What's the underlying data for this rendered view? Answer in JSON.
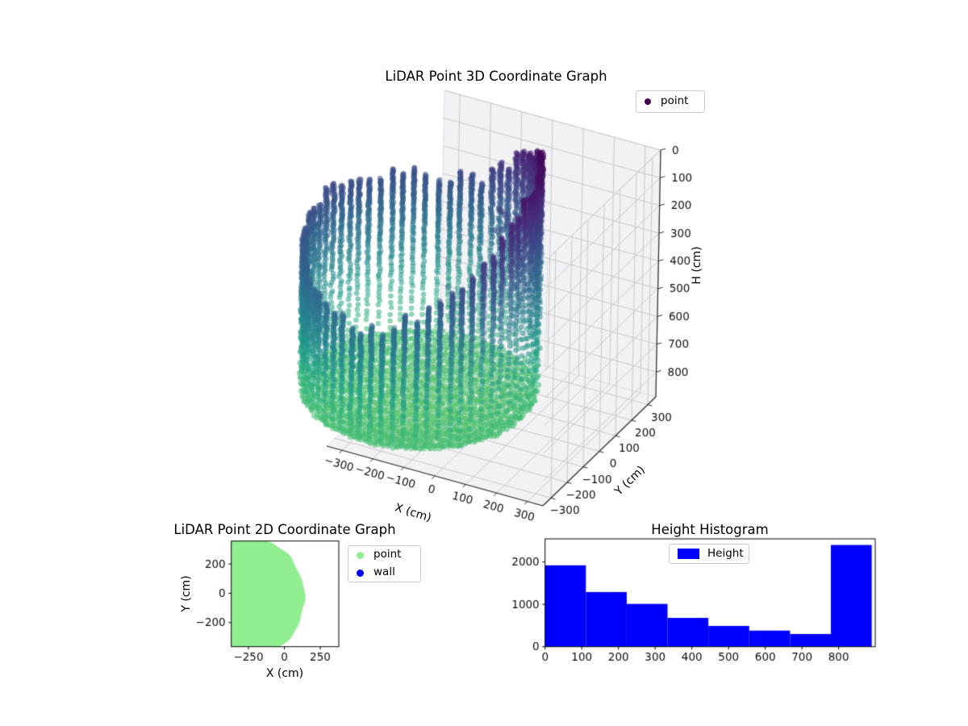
{
  "figure": {
    "background": "#ffffff"
  },
  "chart_data": [
    {
      "type": "scatter3d",
      "title": "LiDAR Point 3D Coordinate Graph",
      "xlabel": "X (cm)",
      "ylabel": "Y (cm)",
      "zlabel": "H (cm)",
      "xticks": [
        -300,
        -200,
        -100,
        0,
        100,
        200,
        300
      ],
      "yticks": [
        -300,
        -200,
        -100,
        0,
        100,
        200,
        300
      ],
      "zticks": [
        0,
        100,
        200,
        300,
        400,
        500,
        600,
        700,
        800
      ],
      "xlim": [
        -350,
        350
      ],
      "ylim": [
        -350,
        350
      ],
      "zlim": [
        0,
        890
      ],
      "z_inverted": true,
      "legend": [
        {
          "label": "point",
          "color": "#440154"
        }
      ],
      "colormap": "viridis (color encodes H: dark purple at H=0 top, green at H=890 bottom)",
      "cloud": {
        "shape": "cylindrical wall of vertical scan columns + bowl-shaped floor",
        "center_xy": [
          -235,
          0
        ],
        "radius": 340,
        "columns": 64,
        "rim_profile_deg_h": [
          [
            0,
            60
          ],
          [
            30,
            4
          ],
          [
            60,
            120
          ],
          [
            90,
            290
          ],
          [
            135,
            280
          ],
          [
            180,
            275
          ],
          [
            225,
            360
          ],
          [
            270,
            455
          ],
          [
            315,
            300
          ],
          [
            345,
            110
          ],
          [
            360,
            60
          ]
        ],
        "wall_bottom_h": 840,
        "floor_h_center": 888,
        "floor_h_edge": 846,
        "h_range": [
          0,
          890
        ]
      },
      "outliers": [
        [
          -55,
          130,
          215
        ],
        [
          -48,
          138,
          225
        ],
        [
          -42,
          145,
          238
        ],
        [
          -38,
          148,
          252
        ],
        [
          -36,
          150,
          266
        ],
        [
          -40,
          146,
          280
        ],
        [
          -48,
          140,
          292
        ],
        [
          -58,
          132,
          297
        ],
        [
          -66,
          126,
          290
        ],
        [
          84,
          116,
          25
        ],
        [
          -150,
          6,
          455
        ],
        [
          -30,
          240,
          270
        ],
        [
          20,
          205,
          300
        ]
      ]
    },
    {
      "type": "scatter2d",
      "title": "LiDAR Point 2D Coordinate Graph",
      "xlabel": "X (cm)",
      "ylabel": "Y (cm)",
      "xticks": [
        -250,
        0,
        250
      ],
      "yticks": [
        -200,
        0,
        200
      ],
      "xlim": [
        -365,
        384
      ],
      "ylim": [
        -367,
        354
      ],
      "legend": [
        {
          "label": "point",
          "color": "#90EE90"
        },
        {
          "label": "wall",
          "color": "#0000FF"
        }
      ],
      "region": {
        "shape": "filled disc of points",
        "center": [
          -283,
          -29
        ],
        "radius": 423,
        "color": "#90EE90"
      }
    },
    {
      "type": "histogram",
      "title": "Height Histogram",
      "legend": [
        {
          "label": "Height",
          "color": "#0000FF"
        }
      ],
      "bar_color": "#0000FF",
      "bin_edges": [
        0,
        111.25,
        222.5,
        333.75,
        445,
        556.25,
        667.5,
        778.75,
        890
      ],
      "counts": [
        1920,
        1290,
        1010,
        680,
        490,
        380,
        300,
        2400
      ],
      "xticks": [
        0,
        100,
        200,
        300,
        400,
        500,
        600,
        700,
        800
      ],
      "yticks": [
        0,
        1000,
        2000
      ],
      "xlim": [
        0,
        901
      ],
      "ylim": [
        0,
        2546
      ]
    }
  ]
}
